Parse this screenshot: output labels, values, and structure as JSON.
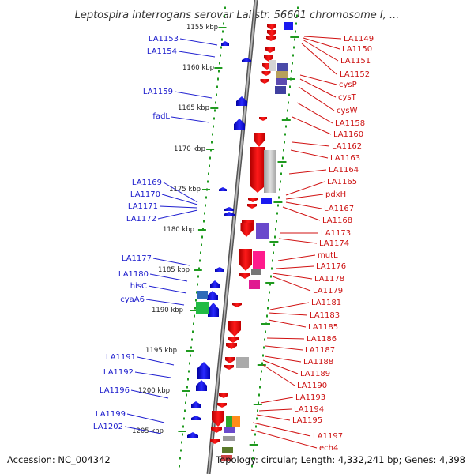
{
  "title": "Leptospira interrogans serovar Lai str. 56601 chromosome I, ...",
  "accession": "Accession: NC_004342",
  "summary": "Topology: circular; Length: 4,332,241 bp; Genes: 4,398",
  "kbp_labels": [
    "1155 kbp",
    "1160 kbp",
    "1165 kbp",
    "1170 kbp",
    "1175 kbp",
    "1180 kbp",
    "1185 kbp",
    "1190 kbp",
    "1195 kbp",
    "1200 kbp",
    "1205 kbp"
  ],
  "left_genes": [
    "LA1153",
    "LA1154",
    "LA1159",
    "fadL",
    "LA1169",
    "LA1170",
    "LA1171",
    "LA1172",
    "LA1177",
    "LA1180",
    "hisC",
    "cyaA6",
    "LA1191",
    "LA1192",
    "LA1196",
    "LA1199",
    "LA1202"
  ],
  "right_genes": [
    "LA1149",
    "LA1150",
    "LA1151",
    "LA1152",
    "cysP",
    "cysT",
    "cysW",
    "LA1158",
    "LA1160",
    "LA1162",
    "LA1163",
    "LA1164",
    "LA1165",
    "pdxH",
    "LA1167",
    "LA1168",
    "LA1173",
    "LA1174",
    "mutL",
    "LA1176",
    "LA1178",
    "LA1179",
    "LA1181",
    "LA1183",
    "LA1185",
    "LA1186",
    "LA1187",
    "LA1188",
    "LA1189",
    "LA1190",
    "LA1193",
    "LA1194",
    "LA1195",
    "LA1197",
    "ech4"
  ],
  "colors": {
    "forward": "#0b0bf0",
    "reverse": "#f00a0a",
    "backbone": "#888888",
    "ruler_dots": "#1f9a1f",
    "label_left": "#1a1acc",
    "label_right": "#cc1111"
  }
}
